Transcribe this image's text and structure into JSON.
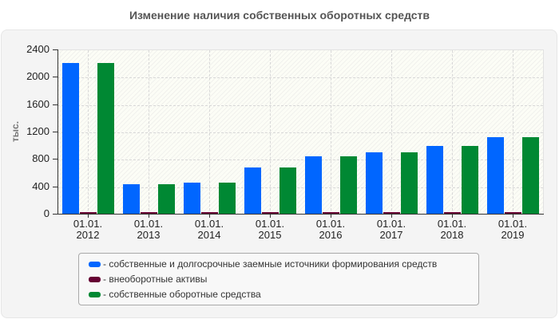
{
  "chart_data": {
    "type": "bar",
    "title": "Изменение наличия собственных оборотных средств",
    "xlabel": "",
    "ylabel": "тыс.",
    "ylim": [
      0,
      2400
    ],
    "yticks": [
      0,
      400,
      800,
      1200,
      1600,
      2000,
      2400
    ],
    "categories": [
      "01.01.\n2012",
      "01.01.\n2013",
      "01.01.\n2014",
      "01.01.\n2015",
      "01.01.\n2016",
      "01.01.\n2017",
      "01.01.\n2018",
      "01.01.\n2019"
    ],
    "category_lines": [
      [
        "01.01.",
        "2012"
      ],
      [
        "01.01.",
        "2013"
      ],
      [
        "01.01.",
        "2014"
      ],
      [
        "01.01.",
        "2015"
      ],
      [
        "01.01.",
        "2016"
      ],
      [
        "01.01.",
        "2017"
      ],
      [
        "01.01.",
        "2018"
      ],
      [
        "01.01.",
        "2019"
      ]
    ],
    "series": [
      {
        "name": "собственные и долгосрочные заемные источники формирования средств",
        "color": "#0066ff",
        "values": [
          2200,
          435,
          460,
          680,
          835,
          895,
          990,
          1120
        ]
      },
      {
        "name": "внеоборотные активы",
        "color": "#660033",
        "values": [
          20,
          20,
          20,
          20,
          20,
          20,
          20,
          20
        ]
      },
      {
        "name": "собственные оборотные средства",
        "color": "#008833",
        "values": [
          2200,
          435,
          460,
          680,
          835,
          895,
          990,
          1120
        ]
      }
    ],
    "grid": true,
    "legend_position": "bottom"
  },
  "legend": {
    "items": [
      {
        "label": "- собственные и долгосрочные заемные источники формирования средств",
        "color": "#0066ff"
      },
      {
        "label": "- внеоборотные активы",
        "color": "#660033"
      },
      {
        "label": "- собственные оборотные средства",
        "color": "#008833"
      }
    ]
  }
}
